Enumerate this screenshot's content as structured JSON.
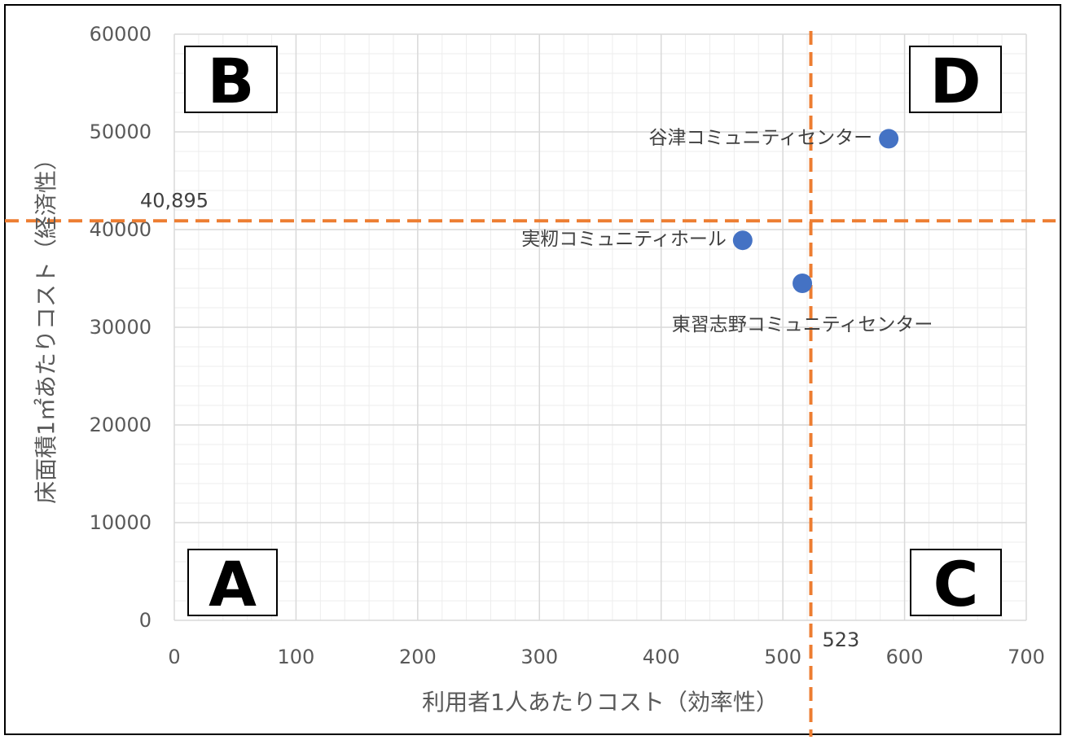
{
  "chart_data": {
    "type": "scatter",
    "xlabel": "利用者1人あたりコスト（効率性）",
    "ylabel": "床面積1㎡あたりコスト（経済性）",
    "xlim": [
      0,
      700
    ],
    "ylim": [
      0,
      60000
    ],
    "x_ticks": [
      "0",
      "100",
      "200",
      "300",
      "400",
      "500",
      "600",
      "700"
    ],
    "y_ticks": [
      "0",
      "10000",
      "20000",
      "30000",
      "40000",
      "50000",
      "60000"
    ],
    "grid": true,
    "points": [
      {
        "label": "谷津コミュニティセンター",
        "x": 587,
        "y": 49300
      },
      {
        "label": "実籾コミュニティホール",
        "x": 467,
        "y": 38900
      },
      {
        "label": "東習志野コミュニティセンター",
        "x": 516,
        "y": 34500
      }
    ],
    "ref_lines": {
      "x_value": 523,
      "x_label": "523",
      "y_value": 40895,
      "y_label": "40,895"
    },
    "quadrants": {
      "top_left": "B",
      "top_right": "D",
      "bottom_left": "A",
      "bottom_right": "C"
    },
    "colors": {
      "point": "#4472C4",
      "ref_line": "#ED7D31",
      "major_grid": "#D9D9D9",
      "minor_grid": "#EDEDED"
    }
  }
}
